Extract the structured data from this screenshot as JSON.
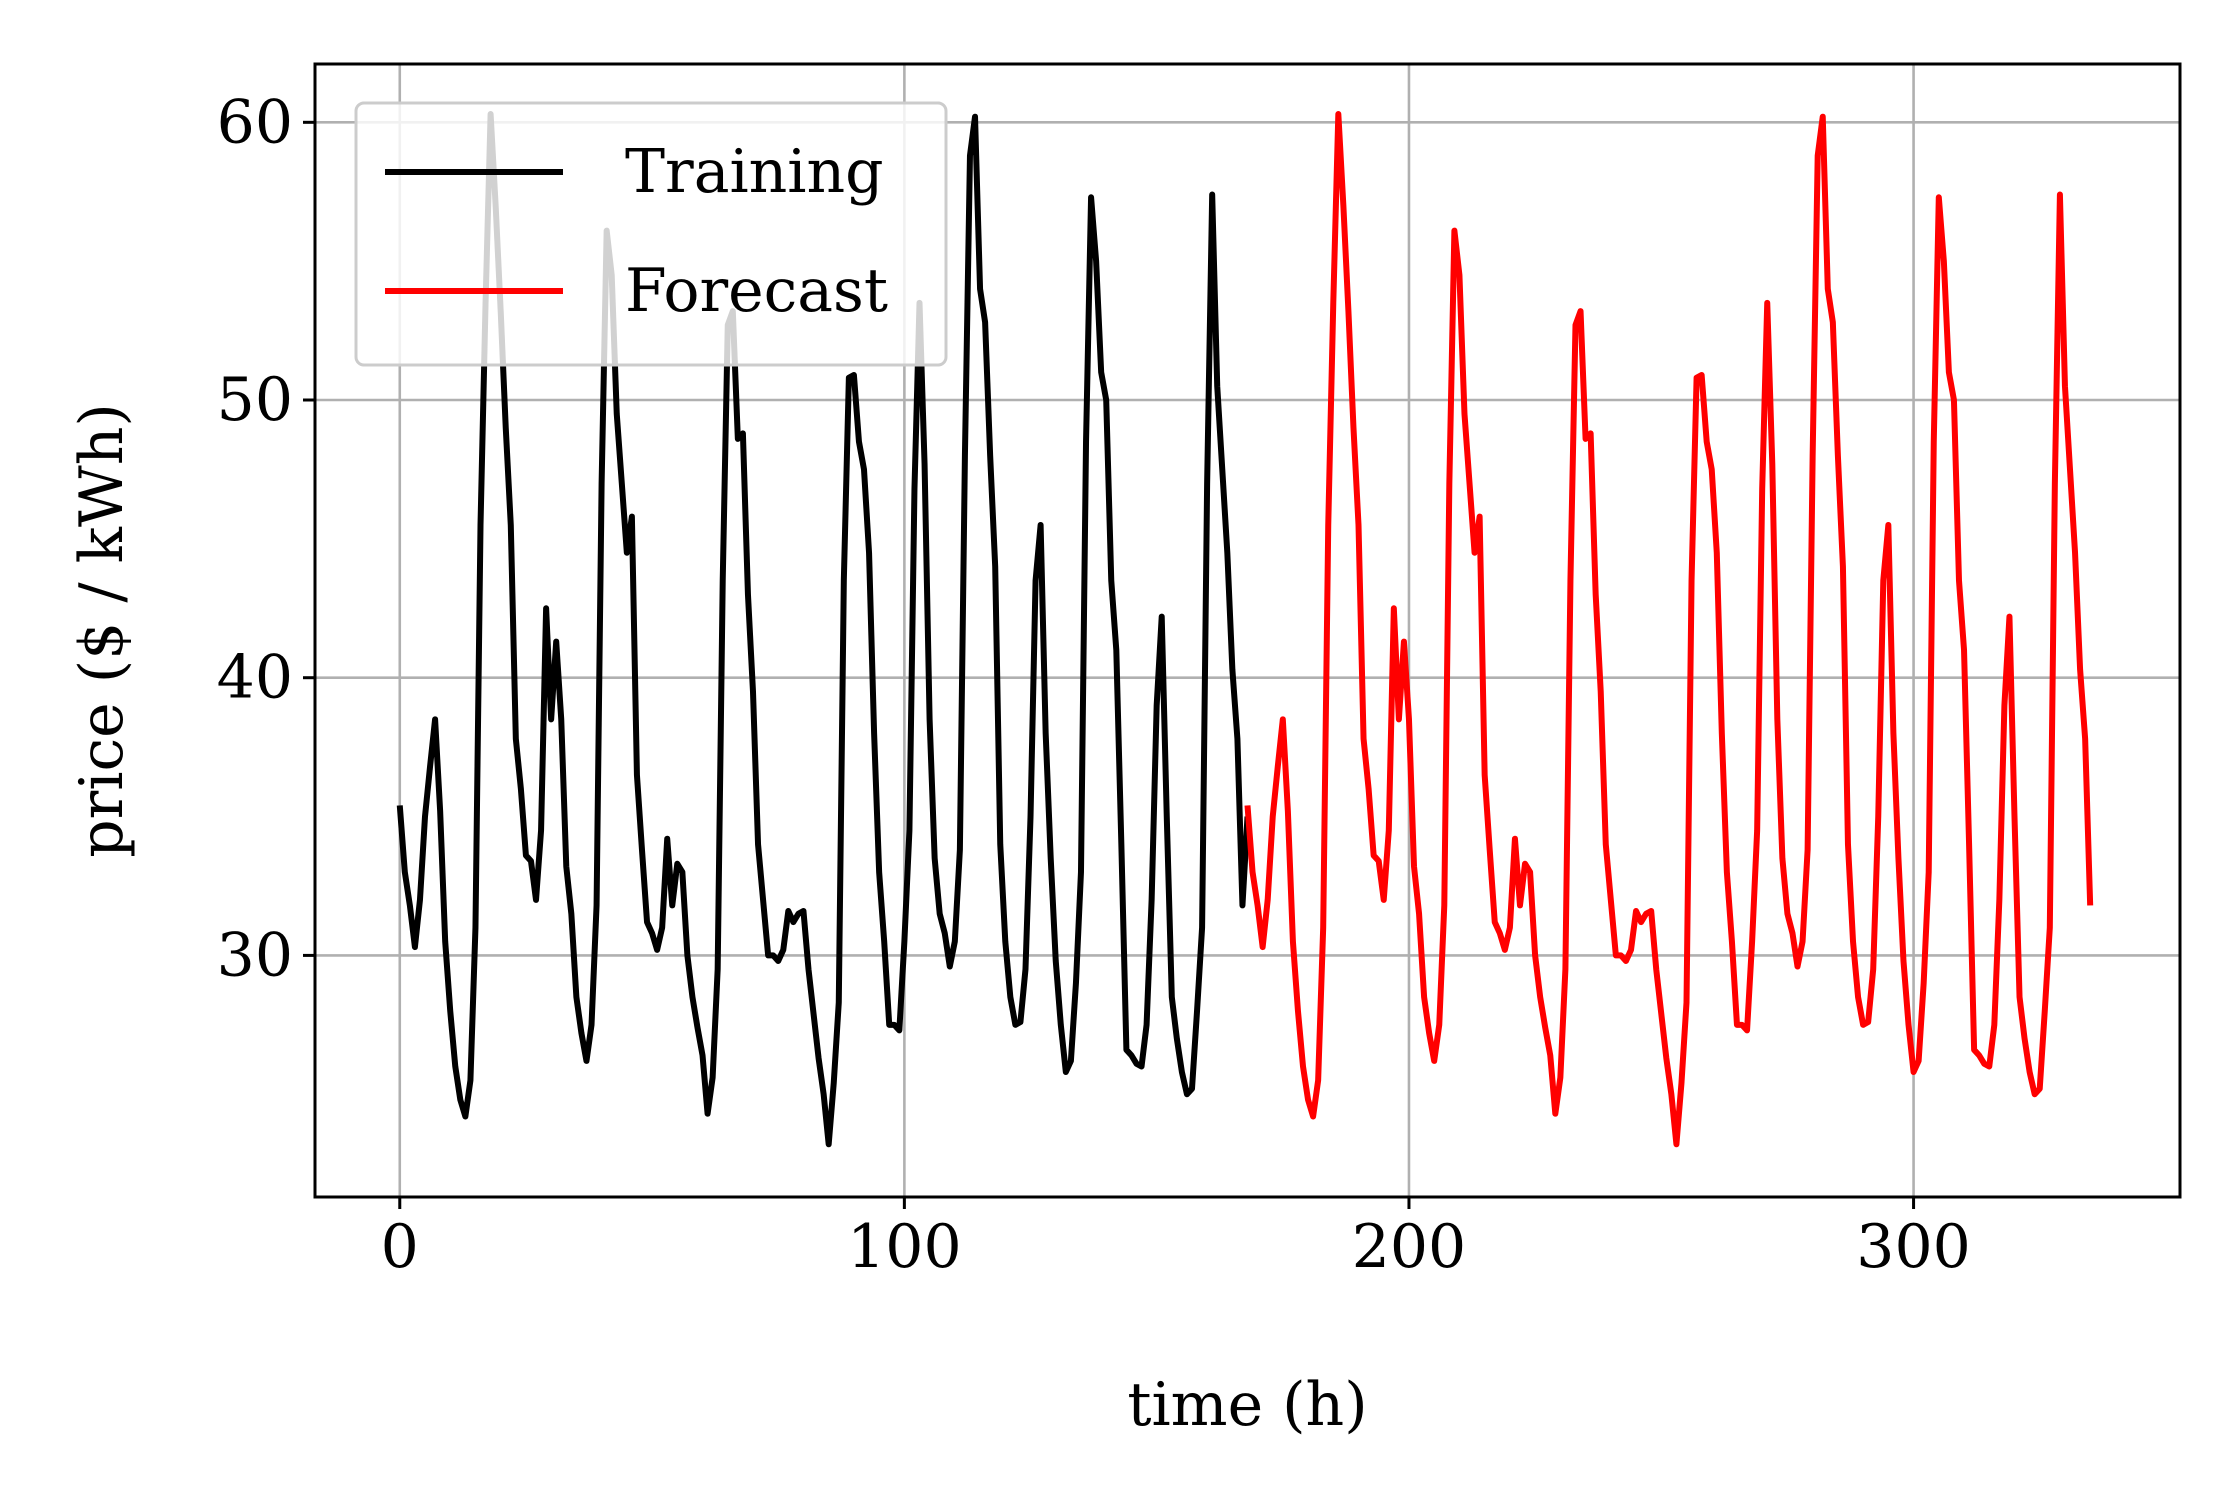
{
  "chart_data": {
    "type": "line",
    "title": "",
    "xlabel": "time (h)",
    "ylabel": "price ($ / kWh)",
    "xlim": [
      -16.8,
      352.8
    ],
    "ylim": [
      21.3,
      62.1
    ],
    "xticks": [
      0,
      100,
      200,
      300
    ],
    "yticks": [
      30,
      40,
      50,
      60
    ],
    "grid": true,
    "legend": {
      "placement": "top-left",
      "entries": [
        "Training",
        "Forecast"
      ]
    },
    "series": [
      {
        "name": "Training",
        "color": "#000000",
        "x_start": 0,
        "x_step": 1,
        "values": [
          35.4,
          33.0,
          31.8,
          30.3,
          32.0,
          35.0,
          36.8,
          38.5,
          35.2,
          30.5,
          28.0,
          26.0,
          24.8,
          24.2,
          25.5,
          31.0,
          45.5,
          53.5,
          60.3,
          57.0,
          53.2,
          49.0,
          45.5,
          37.8,
          36.0,
          33.6,
          33.4,
          32.0,
          34.5,
          42.5,
          38.5,
          41.3,
          38.5,
          33.2,
          31.5,
          28.5,
          27.2,
          26.2,
          27.5,
          31.8,
          47.0,
          56.1,
          54.5,
          49.5,
          47.0,
          44.5,
          45.8,
          36.5,
          33.8,
          31.2,
          30.8,
          30.2,
          31.0,
          34.2,
          31.8,
          33.3,
          33.0,
          30.0,
          28.5,
          27.4,
          26.4,
          24.3,
          25.6,
          29.5,
          43.5,
          52.7,
          53.2,
          48.6,
          48.8,
          43.0,
          39.5,
          34.0,
          32.0,
          30.0,
          30.0,
          29.8,
          30.2,
          31.6,
          31.2,
          31.5,
          31.6,
          29.5,
          27.9,
          26.3,
          25.0,
          23.2,
          25.4,
          28.3,
          43.5,
          50.8,
          50.9,
          48.5,
          47.5,
          44.5,
          38.0,
          33.0,
          30.5,
          27.5,
          27.5,
          27.3,
          30.5,
          34.5,
          46.8,
          53.5,
          47.7,
          38.5,
          33.5,
          31.5,
          30.8,
          29.6,
          30.5,
          33.8,
          48.0,
          58.8,
          60.2,
          54.0,
          52.8,
          48.0,
          44.0,
          34.0,
          30.5,
          28.5,
          27.5,
          27.6,
          29.5,
          35.0,
          43.5,
          45.5,
          38.0,
          33.5,
          29.8,
          27.5,
          25.8,
          26.2,
          29.0,
          33.0,
          48.5,
          57.3,
          55.0,
          51.0,
          50.0,
          43.5,
          41.0,
          34.0,
          26.6,
          26.4,
          26.1,
          26.0,
          27.5,
          32.0,
          39.0,
          42.2,
          35.0,
          28.5,
          27.0,
          25.8,
          25.0,
          25.2,
          28.0,
          31.0,
          47.0,
          57.4,
          50.5,
          47.5,
          44.5,
          40.3,
          37.8,
          31.8,
          35.0
        ]
      },
      {
        "name": "Forecast",
        "color": "#ff0000",
        "x_start": 168,
        "x_step": 1,
        "values": [
          35.4,
          33.0,
          31.8,
          30.3,
          32.0,
          35.0,
          36.8,
          38.5,
          35.2,
          30.5,
          28.0,
          26.0,
          24.8,
          24.2,
          25.5,
          31.0,
          45.5,
          53.5,
          60.3,
          57.0,
          53.2,
          49.0,
          45.5,
          37.8,
          36.0,
          33.6,
          33.4,
          32.0,
          34.5,
          42.5,
          38.5,
          41.3,
          38.5,
          33.2,
          31.5,
          28.5,
          27.2,
          26.2,
          27.5,
          31.8,
          47.0,
          56.1,
          54.5,
          49.5,
          47.0,
          44.5,
          45.8,
          36.5,
          33.8,
          31.2,
          30.8,
          30.2,
          31.0,
          34.2,
          31.8,
          33.3,
          33.0,
          30.0,
          28.5,
          27.4,
          26.4,
          24.3,
          25.6,
          29.5,
          43.5,
          52.7,
          53.2,
          48.6,
          48.8,
          43.0,
          39.5,
          34.0,
          32.0,
          30.0,
          30.0,
          29.8,
          30.2,
          31.6,
          31.2,
          31.5,
          31.6,
          29.5,
          27.9,
          26.3,
          25.0,
          23.2,
          25.4,
          28.3,
          43.5,
          50.8,
          50.9,
          48.5,
          47.5,
          44.5,
          38.0,
          33.0,
          30.5,
          27.5,
          27.5,
          27.3,
          30.5,
          34.5,
          46.8,
          53.5,
          47.7,
          38.5,
          33.5,
          31.5,
          30.8,
          29.6,
          30.5,
          33.8,
          48.0,
          58.8,
          60.2,
          54.0,
          52.8,
          48.0,
          44.0,
          34.0,
          30.5,
          28.5,
          27.5,
          27.6,
          29.5,
          35.0,
          43.5,
          45.5,
          38.0,
          33.5,
          29.8,
          27.5,
          25.8,
          26.2,
          29.0,
          33.0,
          48.5,
          57.3,
          55.0,
          51.0,
          50.0,
          43.5,
          41.0,
          34.0,
          26.6,
          26.4,
          26.1,
          26.0,
          27.5,
          32.0,
          39.0,
          42.2,
          35.0,
          28.5,
          27.0,
          25.8,
          25.0,
          25.2,
          28.0,
          31.0,
          47.0,
          57.4,
          50.5,
          47.5,
          44.5,
          40.3,
          37.8,
          31.8
        ]
      }
    ]
  }
}
